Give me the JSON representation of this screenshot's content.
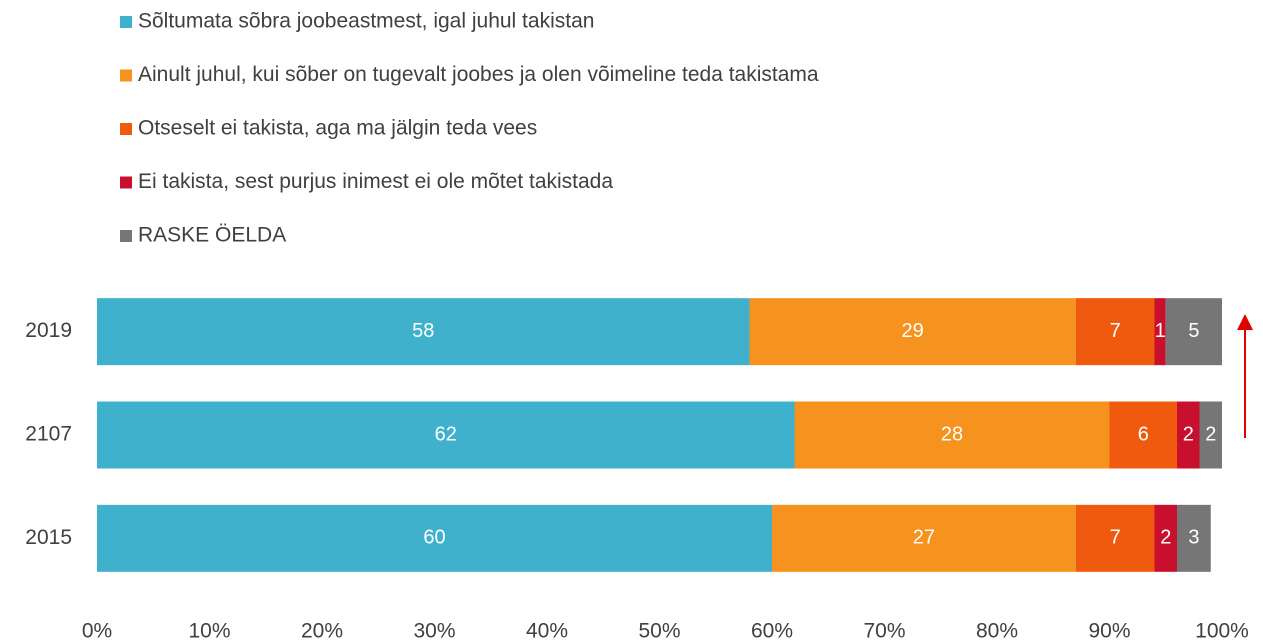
{
  "chart_data": {
    "type": "stacked-barh",
    "categories": [
      "2019",
      "2107",
      "2015"
    ],
    "series": [
      {
        "name": "Sõltumata sõbra joobeastmest, igal juhul takistan",
        "color": "#3fb1cc",
        "values": [
          58,
          62,
          60
        ]
      },
      {
        "name": "Ainult juhul, kui sõber on tugevalt joobes ja olen võimeline teda takistama",
        "color": "#f6921e",
        "values": [
          29,
          28,
          27
        ]
      },
      {
        "name": "Otseselt ei takista, aga ma jälgin teda vees",
        "color": "#f05a0f",
        "values": [
          7,
          6,
          7
        ]
      },
      {
        "name": "Ei takista, sest purjus inimest ei ole mõtet takistada",
        "color": "#c8102e",
        "values": [
          1,
          2,
          2
        ]
      },
      {
        "name": "RASKE ÖELDA",
        "color": "#767676",
        "values": [
          5,
          2,
          3
        ]
      }
    ],
    "xlim": [
      0,
      100
    ],
    "xticks": [
      {
        "value": 0,
        "label": "0%"
      },
      {
        "value": 10,
        "label": "10%"
      },
      {
        "value": 20,
        "label": "20%"
      },
      {
        "value": 30,
        "label": "30%"
      },
      {
        "value": 40,
        "label": "40%"
      },
      {
        "value": 50,
        "label": "50%"
      },
      {
        "value": 60,
        "label": "60%"
      },
      {
        "value": 70,
        "label": "70%"
      },
      {
        "value": 80,
        "label": "80%"
      },
      {
        "value": 90,
        "label": "90%"
      },
      {
        "value": 100,
        "label": "100%"
      }
    ],
    "legend": "top-left"
  }
}
